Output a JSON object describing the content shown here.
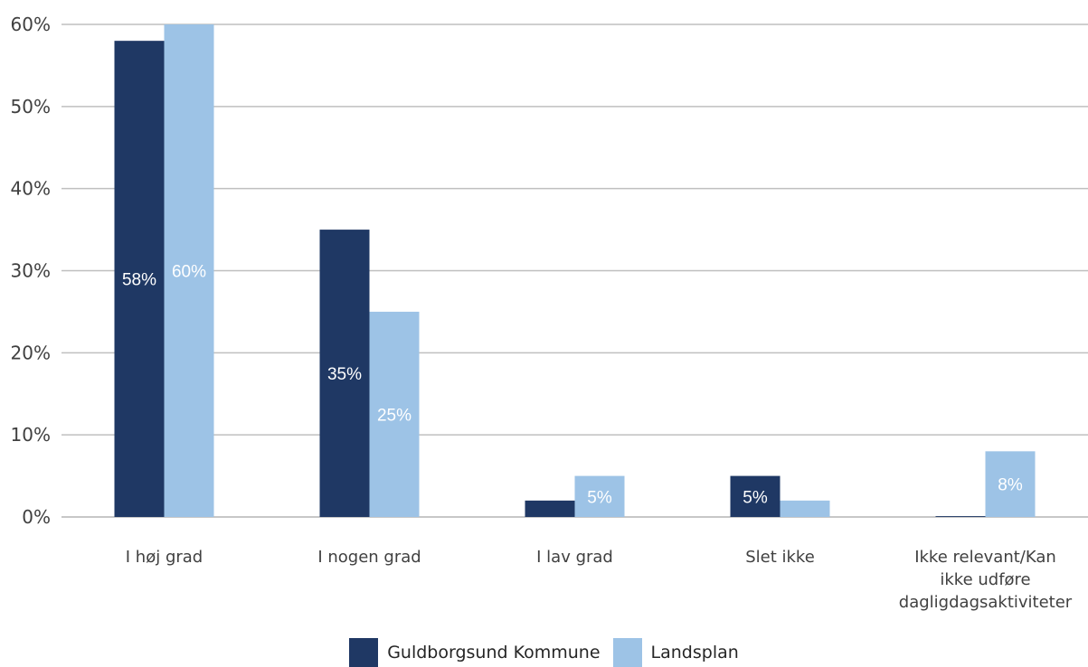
{
  "chart_data": {
    "type": "bar",
    "categories": [
      [
        "I høj grad"
      ],
      [
        "I nogen grad"
      ],
      [
        "I lav grad"
      ],
      [
        "Slet ikke"
      ],
      [
        "Ikke relevant/Kan",
        "ikke udføre",
        "dagligdagsaktiviteter"
      ]
    ],
    "series": [
      {
        "name": "Guldborgsund Kommune",
        "color": "#1f3864",
        "values": [
          58,
          35,
          2,
          5,
          0.1
        ],
        "labels": [
          "58%",
          "35%",
          "",
          "5%",
          ""
        ]
      },
      {
        "name": "Landsplan",
        "color": "#9dc3e6",
        "values": [
          60,
          25,
          5,
          2,
          8
        ],
        "labels": [
          "60%",
          "25%",
          "5%",
          "",
          "8%"
        ]
      }
    ],
    "ylim": [
      0,
      60
    ],
    "yticks": [
      0,
      10,
      20,
      30,
      40,
      50,
      60
    ],
    "ytick_labels": [
      "0%",
      "10%",
      "20%",
      "30%",
      "40%",
      "50%",
      "60%"
    ],
    "grid": true,
    "legend_position": "bottom"
  }
}
